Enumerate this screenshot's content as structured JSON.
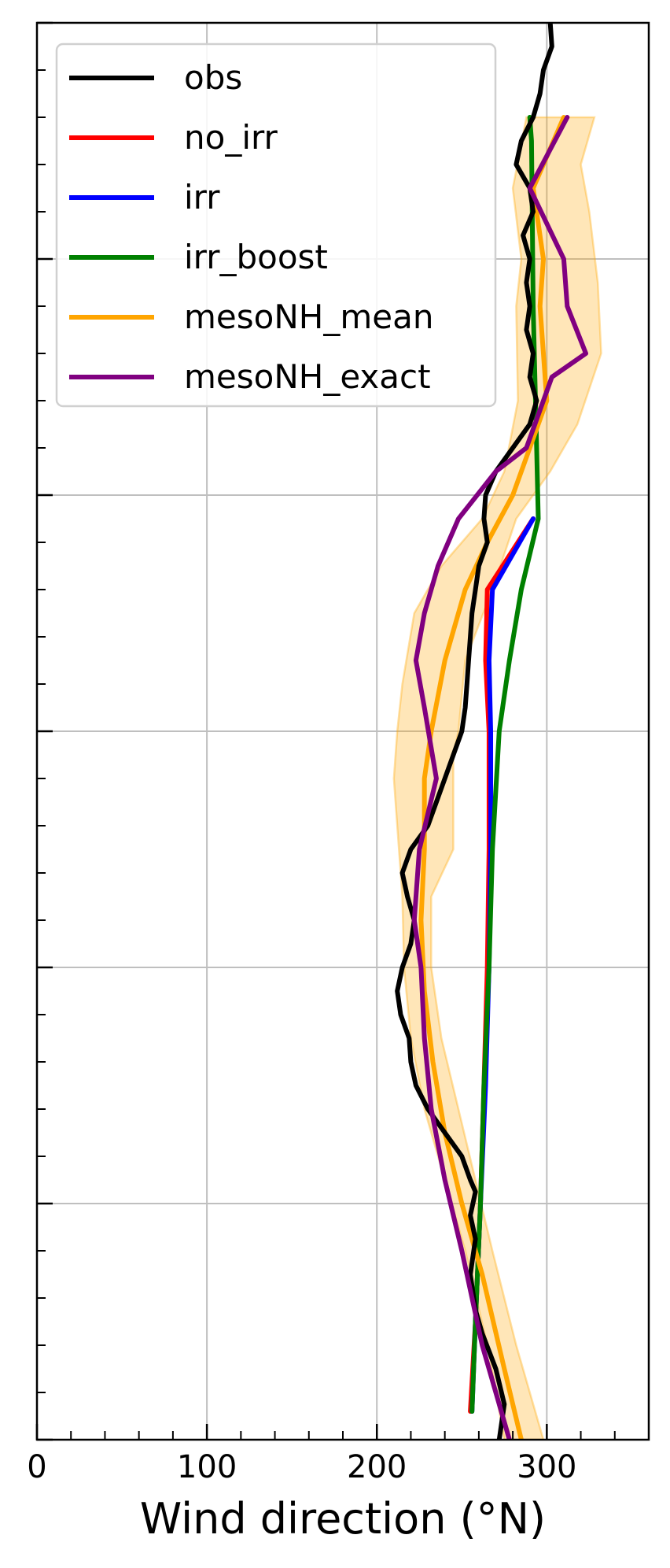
{
  "chart_data": {
    "type": "line",
    "xlabel": "Wind direction (°N)",
    "ylabel": "",
    "xlim": [
      0,
      360
    ],
    "ylim": [
      0,
      6
    ],
    "x_ticks": [
      0,
      100,
      200,
      300
    ],
    "x_minor_step": 20,
    "y_major_ticks": [
      0,
      1,
      2,
      3,
      4,
      5,
      6
    ],
    "y_minor_step": 0.2,
    "grid": true,
    "legend_position": "upper-left",
    "series": [
      {
        "name": "obs",
        "color": "#000000",
        "points": [
          [
            272,
            0
          ],
          [
            275,
            0.15
          ],
          [
            270,
            0.3
          ],
          [
            262,
            0.45
          ],
          [
            258,
            0.55
          ],
          [
            255,
            0.7
          ],
          [
            258,
            0.85
          ],
          [
            255,
            0.95
          ],
          [
            258,
            1.05
          ],
          [
            255,
            1.1
          ],
          [
            250,
            1.2
          ],
          [
            240,
            1.3
          ],
          [
            230,
            1.4
          ],
          [
            223,
            1.5
          ],
          [
            220,
            1.6
          ],
          [
            219,
            1.7
          ],
          [
            214,
            1.8
          ],
          [
            212,
            1.9
          ],
          [
            215,
            2.0
          ],
          [
            220,
            2.1
          ],
          [
            222,
            2.2
          ],
          [
            218,
            2.3
          ],
          [
            215,
            2.4
          ],
          [
            220,
            2.5
          ],
          [
            230,
            2.6
          ],
          [
            235,
            2.7
          ],
          [
            240,
            2.8
          ],
          [
            245,
            2.9
          ],
          [
            250,
            3.0
          ],
          [
            252,
            3.1
          ],
          [
            253,
            3.2
          ],
          [
            254,
            3.3
          ],
          [
            255,
            3.4
          ],
          [
            256,
            3.5
          ],
          [
            258,
            3.6
          ],
          [
            260,
            3.7
          ],
          [
            265,
            3.8
          ],
          [
            263,
            3.9
          ],
          [
            264,
            4.0
          ],
          [
            270,
            4.1
          ],
          [
            280,
            4.2
          ],
          [
            290,
            4.3
          ],
          [
            294,
            4.4
          ],
          [
            290,
            4.5
          ],
          [
            292,
            4.6
          ],
          [
            288,
            4.7
          ],
          [
            290,
            4.8
          ],
          [
            288,
            4.9
          ],
          [
            290,
            5.0
          ],
          [
            286,
            5.1
          ],
          [
            292,
            5.2
          ],
          [
            290,
            5.3
          ],
          [
            282,
            5.4
          ],
          [
            285,
            5.5
          ],
          [
            292,
            5.6
          ],
          [
            296,
            5.7
          ],
          [
            298,
            5.8
          ],
          [
            303,
            5.9
          ],
          [
            302,
            6.0
          ]
        ]
      },
      {
        "name": "no_irr",
        "color": "#ff0000",
        "points": [
          [
            255,
            0.12
          ],
          [
            258,
            0.5
          ],
          [
            261,
            1.0
          ],
          [
            263,
            1.5
          ],
          [
            265,
            2.0
          ],
          [
            266,
            2.5
          ],
          [
            266,
            3.0
          ],
          [
            264,
            3.3
          ],
          [
            265,
            3.6
          ],
          [
            292,
            3.9
          ]
        ]
      },
      {
        "name": "irr",
        "color": "#0000ff",
        "points": [
          [
            256,
            0.12
          ],
          [
            258,
            0.5
          ],
          [
            261,
            1.0
          ],
          [
            264,
            1.5
          ],
          [
            266,
            2.0
          ],
          [
            267,
            2.5
          ],
          [
            267,
            3.0
          ],
          [
            266,
            3.3
          ],
          [
            268,
            3.6
          ],
          [
            292,
            3.9
          ]
        ]
      },
      {
        "name": "irr_boost",
        "color": "#008000",
        "points": [
          [
            256,
            0.12
          ],
          [
            258,
            0.5
          ],
          [
            261,
            1.0
          ],
          [
            263,
            1.5
          ],
          [
            266,
            2.0
          ],
          [
            268,
            2.5
          ],
          [
            272,
            3.0
          ],
          [
            278,
            3.3
          ],
          [
            285,
            3.6
          ],
          [
            295,
            3.9
          ],
          [
            294,
            4.2
          ],
          [
            292,
            4.8
          ],
          [
            291,
            5.5
          ],
          [
            290,
            5.6
          ]
        ]
      },
      {
        "name": "mesoNH_mean",
        "color": "#ffa500",
        "points": [
          [
            285,
            0
          ],
          [
            275,
            0.3
          ],
          [
            262,
            0.7
          ],
          [
            250,
            1.0
          ],
          [
            240,
            1.3
          ],
          [
            233,
            1.6
          ],
          [
            228,
            1.9
          ],
          [
            226,
            2.2
          ],
          [
            228,
            2.5
          ],
          [
            228,
            2.8
          ],
          [
            232,
            3.0
          ],
          [
            240,
            3.3
          ],
          [
            252,
            3.6
          ],
          [
            265,
            3.8
          ],
          [
            280,
            4.0
          ],
          [
            290,
            4.2
          ],
          [
            300,
            4.4
          ],
          [
            296,
            4.8
          ],
          [
            298,
            5.0
          ],
          [
            292,
            5.3
          ],
          [
            310,
            5.6
          ]
        ]
      },
      {
        "name": "mesoNH_exact",
        "color": "#800080",
        "points": [
          [
            278,
            0
          ],
          [
            262,
            0.4
          ],
          [
            250,
            0.8
          ],
          [
            240,
            1.1
          ],
          [
            232,
            1.4
          ],
          [
            228,
            1.7
          ],
          [
            226,
            2.0
          ],
          [
            222,
            2.2
          ],
          [
            225,
            2.5
          ],
          [
            235,
            2.8
          ],
          [
            228,
            3.1
          ],
          [
            223,
            3.3
          ],
          [
            228,
            3.5
          ],
          [
            236,
            3.7
          ],
          [
            248,
            3.9
          ],
          [
            270,
            4.1
          ],
          [
            288,
            4.2
          ],
          [
            293,
            4.3
          ],
          [
            303,
            4.5
          ],
          [
            323,
            4.6
          ],
          [
            312,
            4.8
          ],
          [
            310,
            5.0
          ],
          [
            290,
            5.3
          ],
          [
            312,
            5.6
          ]
        ]
      }
    ],
    "band": {
      "name": "mesoNH_range",
      "color": "#ffa500",
      "upper": [
        [
          298,
          0
        ],
        [
          282,
          0.4
        ],
        [
          268,
          0.8
        ],
        [
          258,
          1.1
        ],
        [
          248,
          1.4
        ],
        [
          238,
          1.7
        ],
        [
          232,
          2.0
        ],
        [
          232,
          2.3
        ],
        [
          245,
          2.5
        ],
        [
          245,
          2.9
        ],
        [
          248,
          3.0
        ],
        [
          252,
          3.3
        ],
        [
          268,
          3.6
        ],
        [
          282,
          3.9
        ],
        [
          302,
          4.1
        ],
        [
          318,
          4.3
        ],
        [
          332,
          4.6
        ],
        [
          330,
          4.9
        ],
        [
          325,
          5.2
        ],
        [
          320,
          5.4
        ],
        [
          328,
          5.6
        ]
      ],
      "lower": [
        [
          275,
          0
        ],
        [
          265,
          0.4
        ],
        [
          252,
          0.8
        ],
        [
          240,
          1.1
        ],
        [
          228,
          1.4
        ],
        [
          220,
          1.7
        ],
        [
          216,
          2.0
        ],
        [
          215,
          2.3
        ],
        [
          212,
          2.6
        ],
        [
          210,
          2.8
        ],
        [
          212,
          3.0
        ],
        [
          215,
          3.2
        ],
        [
          222,
          3.5
        ],
        [
          238,
          3.7
        ],
        [
          262,
          3.9
        ],
        [
          275,
          4.1
        ],
        [
          283,
          4.4
        ],
        [
          282,
          4.8
        ],
        [
          285,
          5.0
        ],
        [
          280,
          5.3
        ],
        [
          288,
          5.6
        ]
      ]
    }
  }
}
